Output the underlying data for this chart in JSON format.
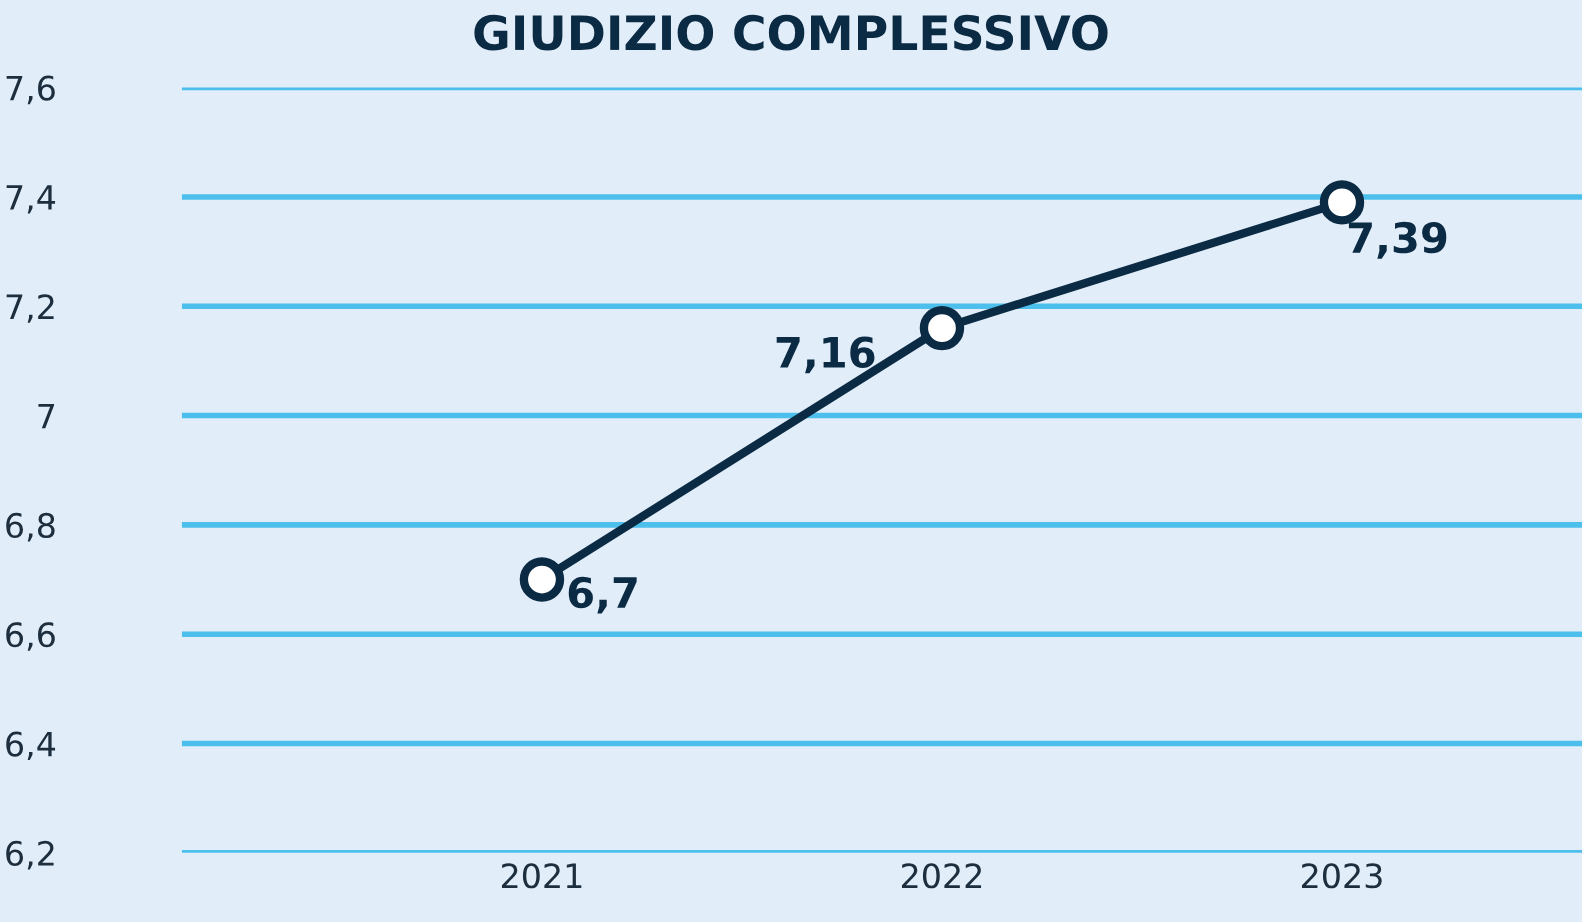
{
  "chart_data": {
    "type": "line",
    "title": "GIUDIZIO COMPLESSIVO",
    "categories": [
      "2021",
      "2022",
      "2023"
    ],
    "series": [
      {
        "color": "#0b2a44",
        "values": [
          6.7,
          7.16,
          7.39
        ],
        "value_labels": [
          "6,7",
          "7,16",
          "7,39"
        ]
      }
    ],
    "ylim": [
      6.2,
      7.6
    ],
    "yticks": [
      {
        "value": 6.2,
        "label": "6,2"
      },
      {
        "value": 6.4,
        "label": "6,4"
      },
      {
        "value": 6.6,
        "label": "6,6"
      },
      {
        "value": 6.8,
        "label": "6,8"
      },
      {
        "value": 7,
        "label": "7"
      },
      {
        "value": 7.2,
        "label": "7,2"
      },
      {
        "value": 7.4,
        "label": "7,4"
      },
      {
        "value": 7.6,
        "label": "7,6"
      }
    ],
    "grid": "y",
    "marker": "circle",
    "line_style": "solid",
    "legend": false
  }
}
